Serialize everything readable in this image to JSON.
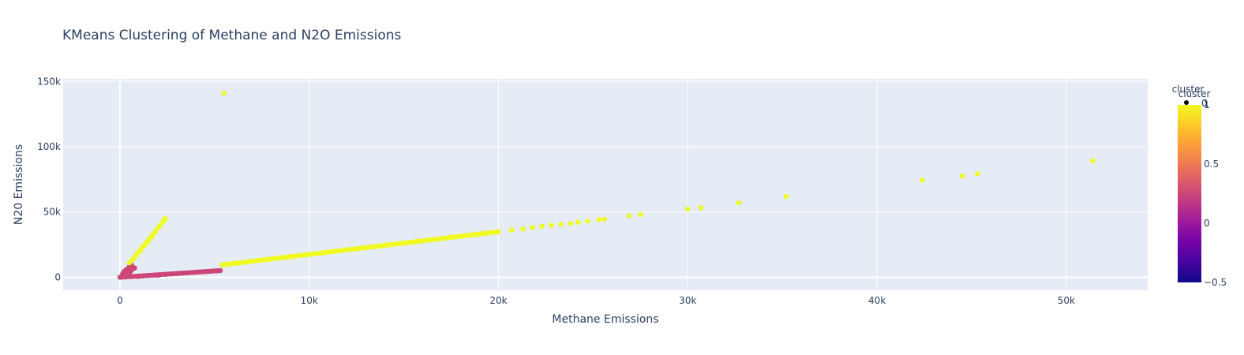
{
  "chart_data": {
    "type": "scatter",
    "title": "KMeans Clustering of Methane and N2O Emissions",
    "xlabel": "Methane Emissions",
    "ylabel": "N20 Emissions",
    "xlim": [
      -3000,
      54300
    ],
    "ylim": [
      -10000,
      152000
    ],
    "x_ticks": [
      0,
      10000,
      20000,
      30000,
      40000,
      50000
    ],
    "x_tick_labels": [
      "0",
      "10k",
      "20k",
      "30k",
      "40k",
      "50k"
    ],
    "y_ticks": [
      0,
      50000,
      100000,
      150000
    ],
    "y_tick_labels": [
      "0",
      "50k",
      "100k",
      "150k"
    ],
    "grid": true,
    "legend": {
      "title": "cluster",
      "entry_labels": [
        "0",
        "1"
      ],
      "placement": "top-right"
    },
    "colorbar": {
      "title": "cluster",
      "range": [
        -0.5,
        1
      ],
      "ticks": [
        -0.5,
        0,
        0.5,
        1
      ],
      "tick_labels": [
        "−0.5",
        "0",
        "0.5",
        "1"
      ],
      "colorscale": [
        "#0d0887",
        "#46039f",
        "#7201a8",
        "#9c179e",
        "#bd3786",
        "#d8576b",
        "#ed7953",
        "#fb9f3a",
        "#fdca26",
        "#f0f921"
      ]
    },
    "series": [
      {
        "cluster": 0,
        "color": "#cc4778",
        "points": [
          [
            0,
            0
          ],
          [
            100,
            300
          ],
          [
            200,
            700
          ],
          [
            300,
            1300
          ],
          [
            400,
            2200
          ],
          [
            500,
            3300
          ],
          [
            550,
            4300
          ],
          [
            600,
            5300
          ],
          [
            650,
            6400
          ],
          [
            700,
            7600
          ],
          [
            500,
            8200
          ],
          [
            600,
            9500
          ],
          [
            780,
            7000
          ],
          [
            350,
            6000
          ],
          [
            250,
            4800
          ],
          [
            150,
            2900
          ],
          [
            120,
            1200
          ],
          [
            80,
            500
          ],
          [
            300,
            250
          ],
          [
            450,
            2000
          ],
          [
            600,
            500
          ],
          [
            900,
            700
          ],
          [
            1200,
            1000
          ],
          [
            1500,
            1300
          ],
          [
            1800,
            1600
          ],
          [
            2100,
            1900
          ],
          [
            2400,
            2200
          ],
          [
            2700,
            2500
          ],
          [
            3000,
            2800
          ],
          [
            3300,
            3100
          ],
          [
            3600,
            3400
          ],
          [
            3900,
            3700
          ],
          [
            4200,
            4000
          ],
          [
            4500,
            4300
          ],
          [
            4800,
            4600
          ],
          [
            5100,
            4900
          ],
          [
            5300,
            5100
          ],
          [
            2000,
            1500
          ],
          [
            1000,
            600
          ],
          [
            350,
            3500
          ],
          [
            450,
            5500
          ],
          [
            200,
            3800
          ]
        ]
      },
      {
        "cluster": 1,
        "color": "#f0f921",
        "points": [
          [
            500,
            11000
          ],
          [
            700,
            14000
          ],
          [
            900,
            17000
          ],
          [
            1100,
            20500
          ],
          [
            1300,
            24000
          ],
          [
            1500,
            27500
          ],
          [
            1700,
            31000
          ],
          [
            1900,
            35000
          ],
          [
            2100,
            39000
          ],
          [
            2300,
            43000
          ],
          [
            2400,
            45000
          ],
          [
            5400,
            9500
          ],
          [
            6000,
            10500
          ],
          [
            6800,
            12000
          ],
          [
            7500,
            13200
          ],
          [
            8000,
            14000
          ],
          [
            8500,
            15000
          ],
          [
            9000,
            16000
          ],
          [
            9500,
            16800
          ],
          [
            10000,
            17500
          ],
          [
            10500,
            18400
          ],
          [
            11000,
            19300
          ],
          [
            11500,
            20100
          ],
          [
            12000,
            21000
          ],
          [
            12500,
            21800
          ],
          [
            13000,
            22700
          ],
          [
            13500,
            23500
          ],
          [
            14000,
            24400
          ],
          [
            14500,
            25300
          ],
          [
            15000,
            26200
          ],
          [
            15500,
            27000
          ],
          [
            16000,
            27900
          ],
          [
            16500,
            28800
          ],
          [
            17000,
            29700
          ],
          [
            17500,
            30600
          ],
          [
            18000,
            31400
          ],
          [
            18500,
            32300
          ],
          [
            19000,
            33200
          ],
          [
            19500,
            34000
          ],
          [
            20000,
            34900
          ],
          [
            20700,
            36200
          ],
          [
            21300,
            37000
          ],
          [
            21800,
            38200
          ],
          [
            22300,
            39000
          ],
          [
            22800,
            39800
          ],
          [
            23300,
            40600
          ],
          [
            23800,
            41300
          ],
          [
            24200,
            42200
          ],
          [
            24700,
            43000
          ],
          [
            25300,
            44200
          ],
          [
            25600,
            44500
          ],
          [
            26900,
            47000
          ],
          [
            27500,
            48200
          ],
          [
            30000,
            52300
          ],
          [
            30700,
            53200
          ],
          [
            32700,
            57000
          ],
          [
            35200,
            61800
          ],
          [
            42400,
            74300
          ],
          [
            44500,
            77600
          ],
          [
            45300,
            79300
          ],
          [
            51400,
            89200
          ],
          [
            5500,
            141000
          ]
        ]
      }
    ]
  }
}
